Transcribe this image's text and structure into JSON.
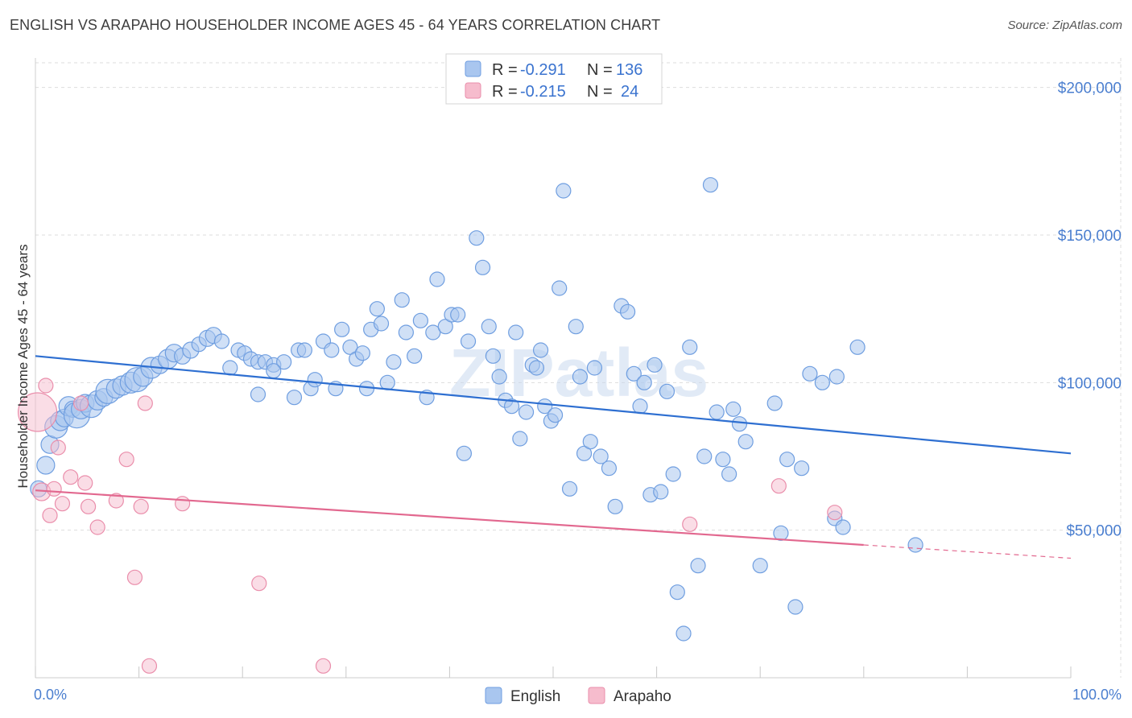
{
  "header": {
    "title": "ENGLISH VS ARAPAHO HOUSEHOLDER INCOME AGES 45 - 64 YEARS CORRELATION CHART",
    "source": "Source: ZipAtlas.com"
  },
  "watermark": "ZIPatlas",
  "colors": {
    "english_fill": "#a9c6ef",
    "english_stroke": "#6f9ee0",
    "english_line": "#2e6fd1",
    "arapaho_fill": "#f6bccd",
    "arapaho_stroke": "#ea8eab",
    "arapaho_line": "#e2688f",
    "grid": "#dddddd",
    "tick_label": "#4a7ecf"
  },
  "legend": {
    "rows": [
      {
        "r_label": "R = ",
        "r_value": "-0.291",
        "n_label": "N = ",
        "n_value": "136"
      },
      {
        "r_label": "R = ",
        "r_value": "-0.215",
        "n_label": "N = ",
        "n_value": "24"
      }
    ],
    "bottom": [
      "English",
      "Arapaho"
    ]
  },
  "chart_data": {
    "type": "scatter",
    "title": "ENGLISH VS ARAPAHO HOUSEHOLDER INCOME AGES 45 - 64 YEARS CORRELATION CHART",
    "xlabel": "",
    "ylabel": "Householder Income Ages 45 - 64 years",
    "xlim": [
      0,
      100
    ],
    "ylim": [
      0,
      210000
    ],
    "x_tick_labels": [
      "0.0%",
      "100.0%"
    ],
    "y_ticks": [
      50000,
      100000,
      150000,
      200000
    ],
    "y_tick_labels": [
      "$50,000",
      "$100,000",
      "$150,000",
      "$200,000"
    ],
    "grid": true,
    "legend_position": "top-center",
    "series": [
      {
        "name": "English",
        "r": -0.291,
        "n": 136,
        "trend": {
          "x0": 0,
          "y0": 109000,
          "x1": 100,
          "y1": 76000
        },
        "points": [
          [
            0.3,
            64000,
            10
          ],
          [
            1,
            72000,
            11
          ],
          [
            1.4,
            79000,
            11
          ],
          [
            2,
            85000,
            14
          ],
          [
            2.4,
            87000,
            12
          ],
          [
            2.8,
            88000,
            11
          ],
          [
            3.2,
            92000,
            12
          ],
          [
            3.6,
            91000,
            10
          ],
          [
            4,
            89000,
            16
          ],
          [
            4.4,
            91000,
            12
          ],
          [
            4.8,
            93000,
            11
          ],
          [
            5.4,
            92000,
            14
          ],
          [
            6,
            94000,
            12
          ],
          [
            6.6,
            95000,
            11
          ],
          [
            7,
            97000,
            15
          ],
          [
            7.8,
            98000,
            12
          ],
          [
            8.4,
            99000,
            12
          ],
          [
            9.2,
            100000,
            13
          ],
          [
            9.8,
            101000,
            15
          ],
          [
            10.4,
            102000,
            12
          ],
          [
            11.2,
            105000,
            13
          ],
          [
            12,
            106000,
            11
          ],
          [
            12.8,
            108000,
            12
          ],
          [
            13.4,
            110000,
            11
          ],
          [
            14.2,
            109000,
            10
          ],
          [
            15,
            111000,
            10
          ],
          [
            15.8,
            113000,
            9
          ],
          [
            16.6,
            115000,
            10
          ],
          [
            17.2,
            116000,
            10
          ],
          [
            18,
            114000,
            9
          ],
          [
            18.8,
            105000,
            9
          ],
          [
            19.6,
            111000,
            9
          ],
          [
            20.2,
            110000,
            9
          ],
          [
            20.8,
            108000,
            9
          ],
          [
            21.5,
            107000,
            9
          ],
          [
            22.2,
            107000,
            9
          ],
          [
            23,
            106000,
            9
          ],
          [
            24,
            107000,
            9
          ],
          [
            21.5,
            96000,
            9
          ],
          [
            23,
            104000,
            9
          ],
          [
            25.4,
            111000,
            9
          ],
          [
            26,
            111000,
            9
          ],
          [
            25,
            95000,
            9
          ],
          [
            26.6,
            98000,
            9
          ],
          [
            27,
            101000,
            9
          ],
          [
            27.8,
            114000,
            9
          ],
          [
            28.6,
            111000,
            9
          ],
          [
            29,
            98000,
            9
          ],
          [
            29.6,
            118000,
            9
          ],
          [
            30.4,
            112000,
            9
          ],
          [
            31,
            108000,
            9
          ],
          [
            31.6,
            110000,
            9
          ],
          [
            32,
            98000,
            9
          ],
          [
            32.4,
            118000,
            9
          ],
          [
            33,
            125000,
            9
          ],
          [
            33.4,
            120000,
            9
          ],
          [
            34,
            100000,
            9
          ],
          [
            34.6,
            107000,
            9
          ],
          [
            35.4,
            128000,
            9
          ],
          [
            35.8,
            117000,
            9
          ],
          [
            36.6,
            109000,
            9
          ],
          [
            37.2,
            121000,
            9
          ],
          [
            37.8,
            95000,
            9
          ],
          [
            38.4,
            117000,
            9
          ],
          [
            38.8,
            135000,
            9
          ],
          [
            39.6,
            119000,
            9
          ],
          [
            40.2,
            123000,
            9
          ],
          [
            40.8,
            123000,
            9
          ],
          [
            41.4,
            76000,
            9
          ],
          [
            41.8,
            114000,
            9
          ],
          [
            42.6,
            149000,
            9
          ],
          [
            43.2,
            139000,
            9
          ],
          [
            43.8,
            119000,
            9
          ],
          [
            44.2,
            109000,
            9
          ],
          [
            44.8,
            102000,
            9
          ],
          [
            45.4,
            94000,
            9
          ],
          [
            46,
            92000,
            9
          ],
          [
            46.4,
            117000,
            9
          ],
          [
            46.8,
            81000,
            9
          ],
          [
            47.4,
            90000,
            9
          ],
          [
            48,
            106000,
            9
          ],
          [
            48.4,
            105000,
            9
          ],
          [
            48.8,
            111000,
            9
          ],
          [
            49.2,
            92000,
            9
          ],
          [
            49.8,
            87000,
            9
          ],
          [
            50.2,
            89000,
            9
          ],
          [
            50.6,
            132000,
            9
          ],
          [
            51,
            165000,
            9
          ],
          [
            51.6,
            64000,
            9
          ],
          [
            52.2,
            119000,
            9
          ],
          [
            52.6,
            102000,
            9
          ],
          [
            53,
            76000,
            9
          ],
          [
            53.6,
            80000,
            9
          ],
          [
            54,
            105000,
            9
          ],
          [
            54.6,
            75000,
            9
          ],
          [
            55.4,
            71000,
            9
          ],
          [
            56,
            58000,
            9
          ],
          [
            56.6,
            126000,
            9
          ],
          [
            57.2,
            124000,
            9
          ],
          [
            57.8,
            103000,
            9
          ],
          [
            58.4,
            92000,
            9
          ],
          [
            58.8,
            100000,
            9
          ],
          [
            59.4,
            62000,
            9
          ],
          [
            59.8,
            106000,
            9
          ],
          [
            60.4,
            63000,
            9
          ],
          [
            61,
            97000,
            9
          ],
          [
            61.6,
            69000,
            9
          ],
          [
            62,
            29000,
            9
          ],
          [
            62.6,
            15000,
            9
          ],
          [
            63.2,
            112000,
            9
          ],
          [
            64,
            38000,
            9
          ],
          [
            64.6,
            75000,
            9
          ],
          [
            65.2,
            167000,
            9
          ],
          [
            65.8,
            90000,
            9
          ],
          [
            66.4,
            74000,
            9
          ],
          [
            67,
            69000,
            9
          ],
          [
            67.4,
            91000,
            9
          ],
          [
            68,
            86000,
            9
          ],
          [
            68.6,
            80000,
            9
          ],
          [
            70,
            38000,
            9
          ],
          [
            71.4,
            93000,
            9
          ],
          [
            72,
            49000,
            9
          ],
          [
            72.6,
            74000,
            9
          ],
          [
            73.4,
            24000,
            9
          ],
          [
            74,
            71000,
            9
          ],
          [
            74.8,
            103000,
            9
          ],
          [
            76,
            100000,
            9
          ],
          [
            77.4,
            102000,
            9
          ],
          [
            79.4,
            112000,
            9
          ],
          [
            77.2,
            54000,
            9
          ],
          [
            78,
            51000,
            9
          ],
          [
            85,
            45000,
            9
          ]
        ]
      },
      {
        "name": "Arapaho",
        "r": -0.215,
        "n": 24,
        "trend": {
          "x0": 0,
          "y0": 63500,
          "x1": 80,
          "y1": 45000,
          "dash_to_x": 100,
          "dash_to_y": 40500
        },
        "points": [
          [
            0.2,
            90000,
            24
          ],
          [
            0.6,
            63000,
            11
          ],
          [
            1,
            99000,
            9
          ],
          [
            1.4,
            55000,
            9
          ],
          [
            1.8,
            64000,
            9
          ],
          [
            2.2,
            78000,
            9
          ],
          [
            2.6,
            59000,
            9
          ],
          [
            3.4,
            68000,
            9
          ],
          [
            4.4,
            93000,
            9
          ],
          [
            4.8,
            66000,
            9
          ],
          [
            5.1,
            58000,
            9
          ],
          [
            6,
            51000,
            9
          ],
          [
            7.8,
            60000,
            9
          ],
          [
            8.8,
            74000,
            9
          ],
          [
            9.6,
            34000,
            9
          ],
          [
            10.2,
            58000,
            9
          ],
          [
            10.6,
            93000,
            9
          ],
          [
            11,
            4000,
            9
          ],
          [
            14.2,
            59000,
            9
          ],
          [
            21.6,
            32000,
            9
          ],
          [
            27.8,
            4000,
            9
          ],
          [
            63.2,
            52000,
            9
          ],
          [
            71.8,
            65000,
            9
          ],
          [
            77.2,
            56000,
            9
          ]
        ]
      }
    ]
  }
}
